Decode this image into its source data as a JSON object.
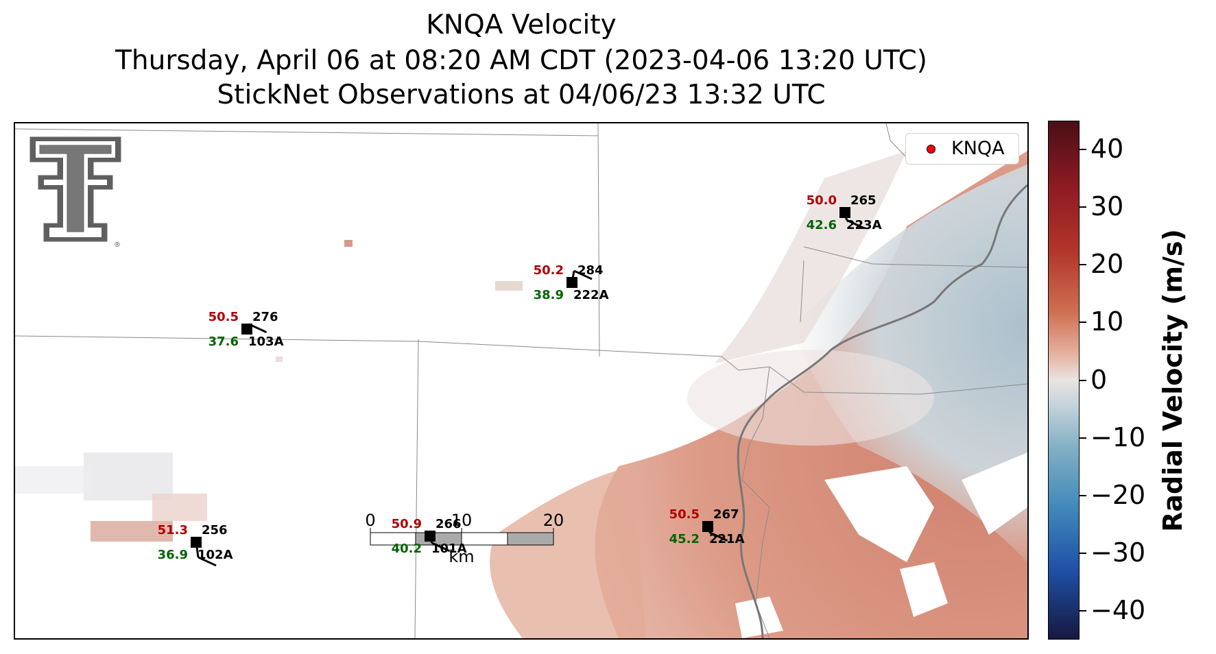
{
  "title": {
    "line1": "KNQA Velocity",
    "line2": "Thursday, April 06 at 08:20 AM CDT (2023-04-06 13:20 UTC)",
    "line3": "StickNet Observations at 04/06/23 13:32 UTC"
  },
  "legend": {
    "label": "KNQA",
    "marker_color": "#ff0000"
  },
  "logo": {
    "name": "texas-tech-double-t-logo",
    "registered": "®"
  },
  "colorbar": {
    "title": "Radial Velocity (m/s)",
    "range": [
      -45,
      45
    ],
    "ticks": [
      {
        "value": 40,
        "label": "40"
      },
      {
        "value": 30,
        "label": "30"
      },
      {
        "value": 20,
        "label": "20"
      },
      {
        "value": 10,
        "label": "10"
      },
      {
        "value": 0,
        "label": "0"
      },
      {
        "value": -10,
        "label": "−10"
      },
      {
        "value": -20,
        "label": "−20"
      },
      {
        "value": -30,
        "label": "−30"
      },
      {
        "value": -40,
        "label": "−40"
      }
    ],
    "colors": {
      "max": "#4a0e16",
      "zero": "#e9e4e2",
      "min": "#17183f"
    }
  },
  "scalebar": {
    "labels": [
      "0",
      "10",
      "20"
    ],
    "unit": "km"
  },
  "stations": [
    {
      "id": "103A",
      "temperature": "50.5",
      "dewpoint": "37.6",
      "direction": "276",
      "wind_deg": 276
    },
    {
      "id": "222A",
      "temperature": "50.2",
      "dewpoint": "38.9",
      "direction": "284",
      "wind_deg": 284
    },
    {
      "id": "223A",
      "temperature": "50.0",
      "dewpoint": "42.6",
      "direction": "265",
      "wind_deg": 265
    },
    {
      "id": "102A",
      "temperature": "51.3",
      "dewpoint": "36.9",
      "direction": "256",
      "wind_deg": 256
    },
    {
      "id": "101A",
      "temperature": "50.9",
      "dewpoint": "40.2",
      "direction": "266",
      "wind_deg": 266
    },
    {
      "id": "221A",
      "temperature": "50.5",
      "dewpoint": "45.2",
      "direction": "267",
      "wind_deg": 267
    }
  ],
  "station_colors": {
    "temperature": "#b00000",
    "dewpoint": "#006400",
    "direction": "#000000"
  }
}
